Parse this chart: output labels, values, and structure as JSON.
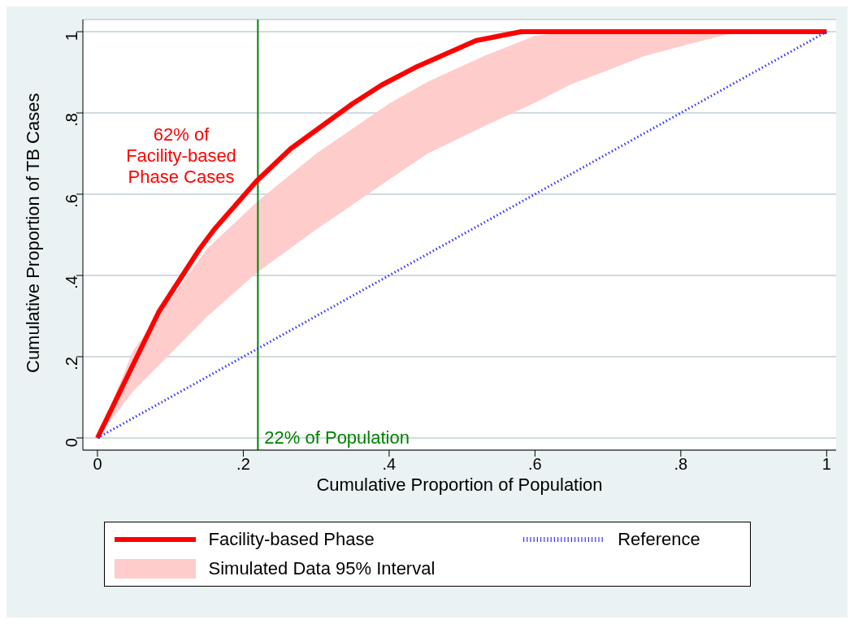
{
  "chart_data": {
    "type": "line",
    "xlabel": "Cumulative Proportion of Population",
    "ylabel": "Cumulative Proportion of TB Cases",
    "series": [
      {
        "name": "Facility-based Phase",
        "color": "#ff0000",
        "line_style": "solid",
        "x": [
          0,
          0.084,
          0.14,
          0.16,
          0.218,
          0.265,
          0.35,
          0.39,
          0.437,
          0.519,
          0.581,
          1
        ],
        "values": [
          0,
          0.31,
          0.465,
          0.513,
          0.632,
          0.712,
          0.823,
          0.869,
          0.913,
          0.978,
          1,
          1
        ]
      },
      {
        "name": "Simulated Data 95% Interval",
        "type": "area",
        "color": "#ffcccc",
        "x": [
          0,
          0.049,
          0.15,
          0.218,
          0.3,
          0.4,
          0.453,
          0.53,
          0.6,
          0.65,
          0.7,
          0.75,
          0.8,
          0.867,
          0.883,
          1
        ],
        "values": [
          null,
          null,
          null,
          null,
          null,
          null,
          null,
          null,
          null,
          null,
          null,
          null,
          null,
          null,
          null,
          null
        ],
        "lower": [
          0,
          0.115,
          0.298,
          0.406,
          0.513,
          0.636,
          0.7,
          0.767,
          0.825,
          0.871,
          0.905,
          0.94,
          0.964,
          0.995,
          1,
          1
        ],
        "upper": [
          0,
          0.215,
          0.465,
          0.58,
          0.7,
          0.823,
          0.877,
          0.94,
          0.99,
          1,
          1,
          1,
          1,
          1,
          1,
          1
        ]
      },
      {
        "name": "Reference",
        "color": "#3333ff",
        "line_style": "dotted",
        "x": [
          0,
          1
        ],
        "values": [
          0,
          1
        ]
      }
    ],
    "xlim": [
      -0.02,
      1.013
    ],
    "ylim": [
      -0.03,
      1.03
    ],
    "xticks": [
      0,
      {
        "value": 0.2,
        "label": ".2"
      },
      {
        "value": 0.4,
        "label": ".4"
      },
      {
        "value": 0.6,
        "label": ".6"
      },
      {
        "value": 0.8,
        "label": ".8"
      },
      1
    ],
    "yticks": [
      0,
      {
        "value": 0.2,
        "label": ".2"
      },
      {
        "value": 0.4,
        "label": ".4"
      },
      {
        "value": 0.6,
        "label": ".6"
      },
      {
        "value": 0.8,
        "label": ".8"
      },
      1
    ],
    "ref_lines": [
      {
        "axis": "x",
        "value": 0.22,
        "label": "22% of Population",
        "color": "#008000",
        "line_style": "solid"
      }
    ],
    "annotations": [
      "62% of\nFacility-based\nPhase Cases"
    ],
    "grid": "y",
    "legend": "bottom",
    "marker": "none"
  }
}
